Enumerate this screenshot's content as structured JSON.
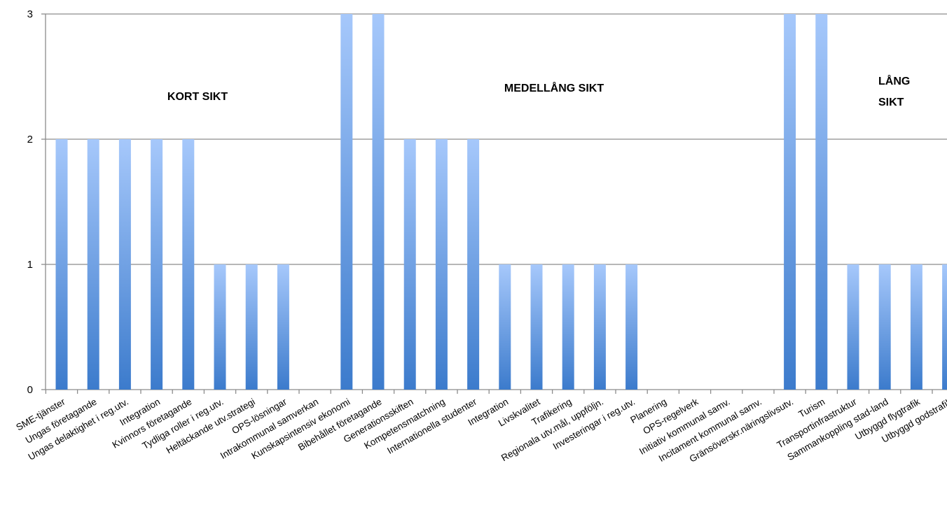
{
  "chart_data": {
    "type": "bar",
    "categories": [
      "SME-tjänster",
      "Ungas företagande",
      "Ungas delaktighet i reg.utv.",
      "Integration",
      "Kvinnors företagande",
      "Tydliga roller i reg.utv.",
      "Heltäckande utv.strategi",
      "OPS-lösningar",
      "Intrakommunal samverkan",
      "Kunskapsintensiv ekonomi",
      "Bibehållet företagande",
      "Generationsskiften",
      "Kompetensmatchning",
      "Internationella studenter",
      "Integration",
      "Livskvalitet",
      "Trafikering",
      "Regionala utv.mål, uppföljn.",
      "Investeringar i reg.utv.",
      "Planering",
      "OPS-regelverk",
      "Initiativ kommunal samv.",
      "Incitament kommunal samv.",
      "Gränsöverskr.näringslivsutv.",
      "Turism",
      "Transportinfrastruktur",
      "Sammankoppling stad-land",
      "Utbyggd flygtrafik",
      "Utbyggd godstrafik"
    ],
    "values": [
      2,
      2,
      2,
      2,
      2,
      1,
      1,
      1,
      0,
      3,
      3,
      2,
      2,
      2,
      1,
      1,
      1,
      1,
      1,
      0,
      0,
      0,
      0,
      3,
      3,
      1,
      1,
      1,
      1
    ],
    "ylim": [
      0,
      3
    ],
    "yticks": [
      "0",
      "1",
      "2",
      "3"
    ],
    "grid": true,
    "annotations": [
      {
        "text": "KORT SIKT"
      },
      {
        "text": "MEDELLÅNG SIKT"
      },
      {
        "text": "LÅNG",
        "text2": "SIKT"
      }
    ],
    "colors": {
      "bar_top": "#a6c8fb",
      "bar_bottom": "#3c7bcc",
      "grid": "#8c8c8c"
    }
  }
}
